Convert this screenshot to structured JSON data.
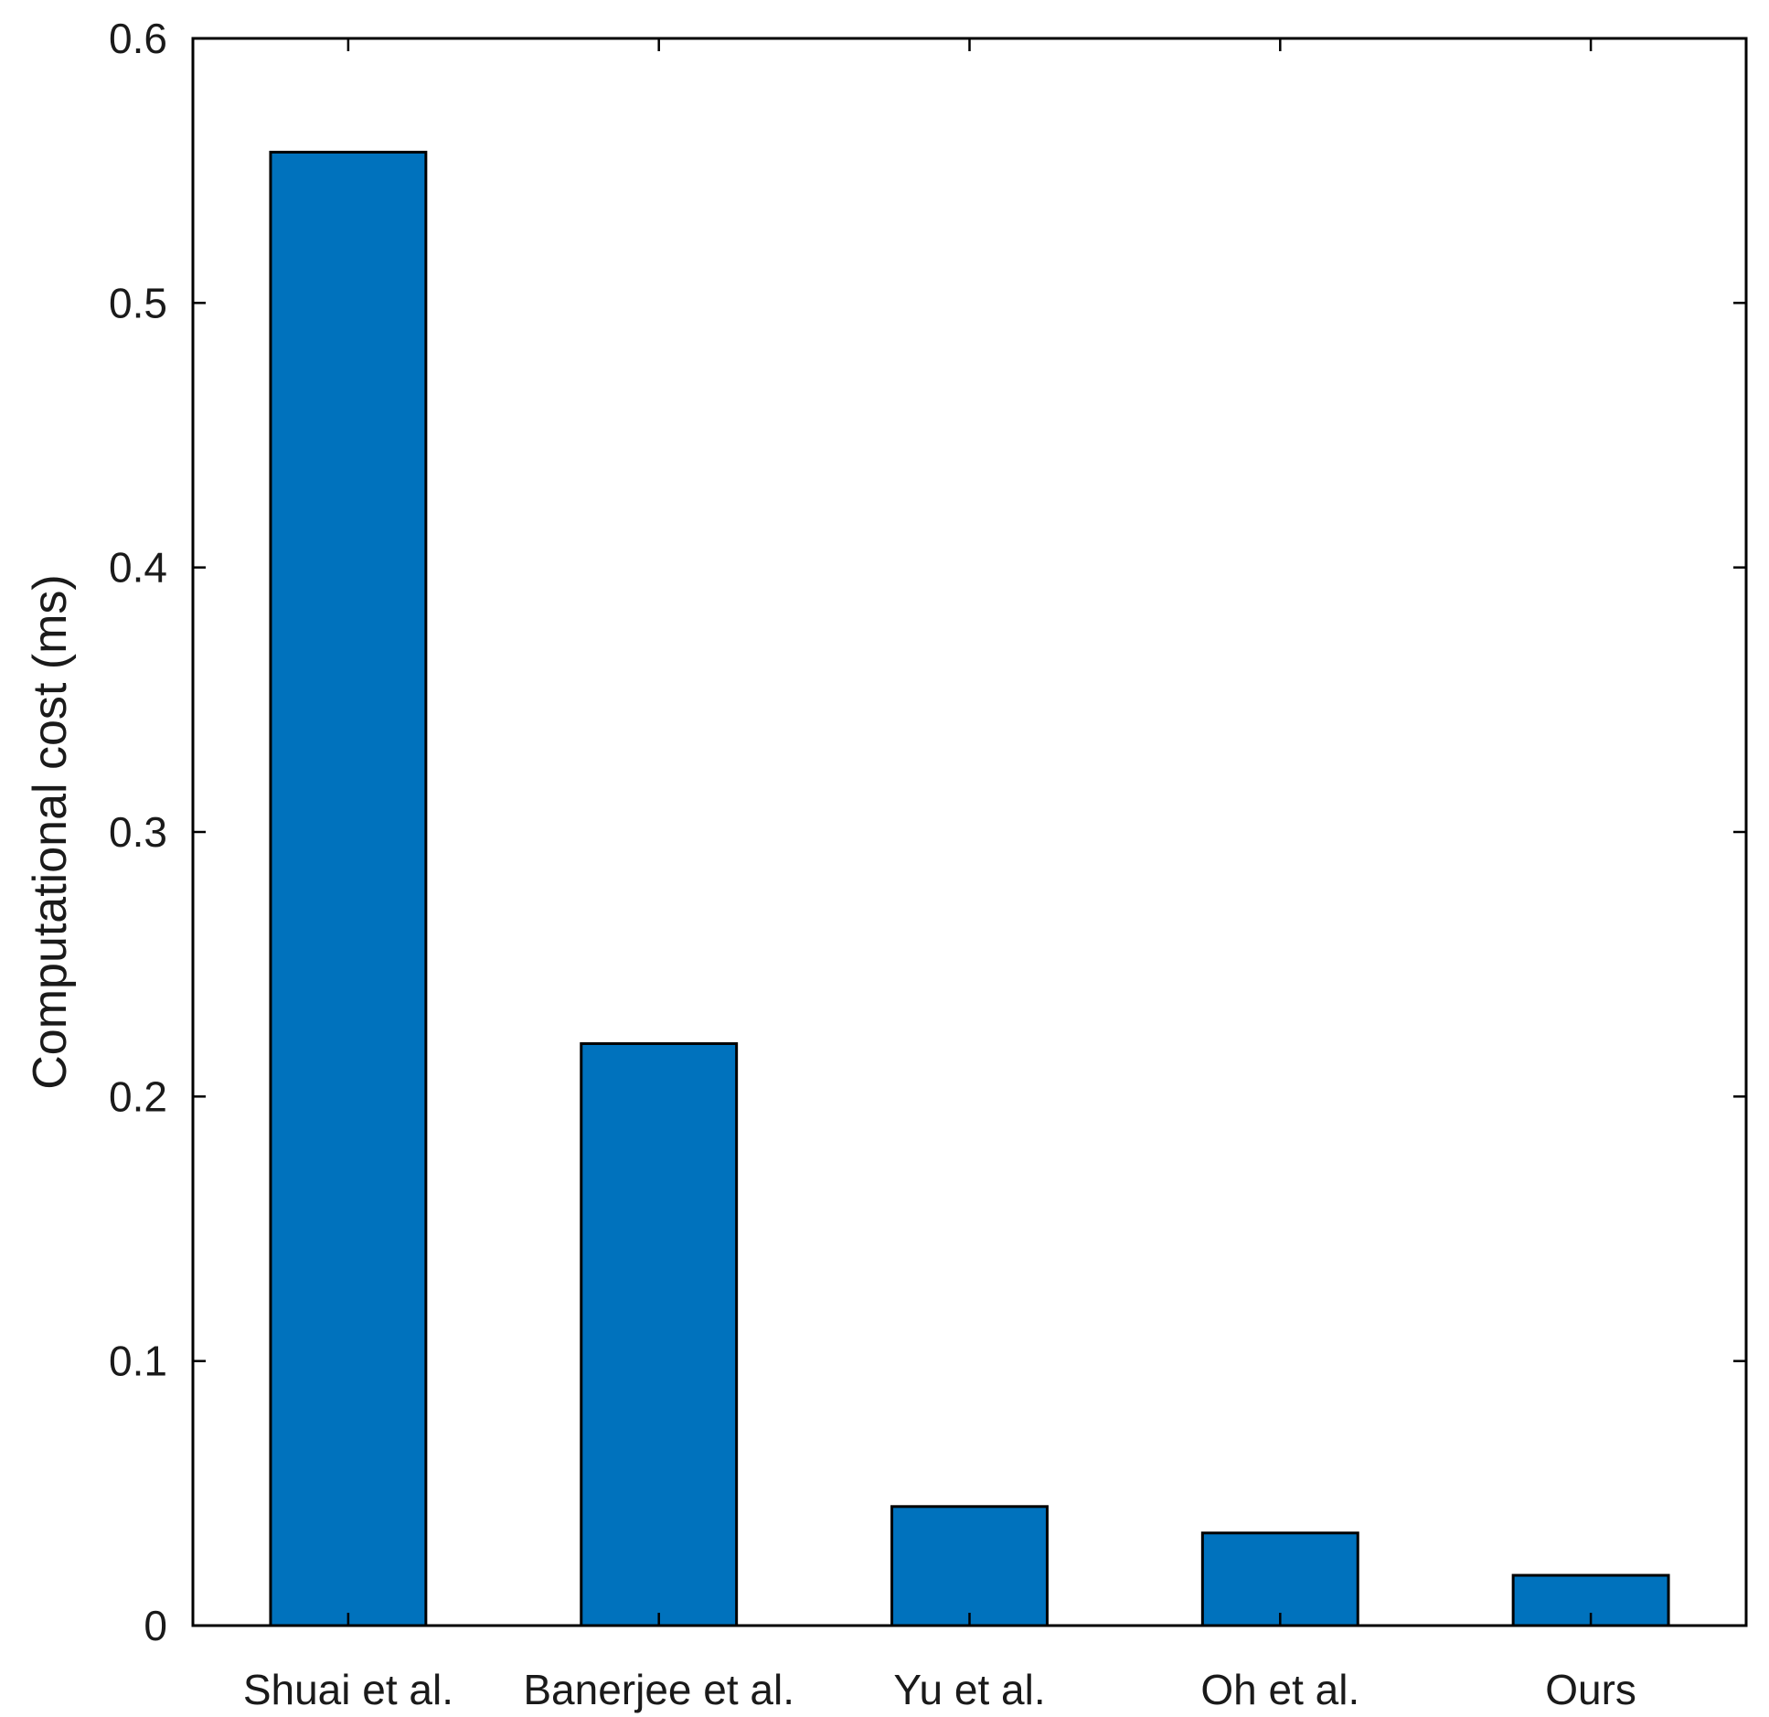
{
  "chart_data": {
    "type": "bar",
    "categories": [
      "Shuai et al.",
      "Banerjee et al.",
      "Yu et al.",
      "Oh et al.",
      "Ours"
    ],
    "values": [
      0.557,
      0.22,
      0.045,
      0.035,
      0.019
    ],
    "title": "",
    "xlabel": "",
    "ylabel": "Computational cost (ms)",
    "ylim": [
      0,
      0.6
    ],
    "yticks": [
      0,
      0.1,
      0.2,
      0.3,
      0.4,
      0.5,
      0.6
    ],
    "ytick_labels": [
      "0",
      "0.1",
      "0.2",
      "0.3",
      "0.4",
      "0.5",
      "0.6"
    ],
    "grid": false,
    "bar_color": "#0072BD",
    "edge_color": "#000000"
  }
}
